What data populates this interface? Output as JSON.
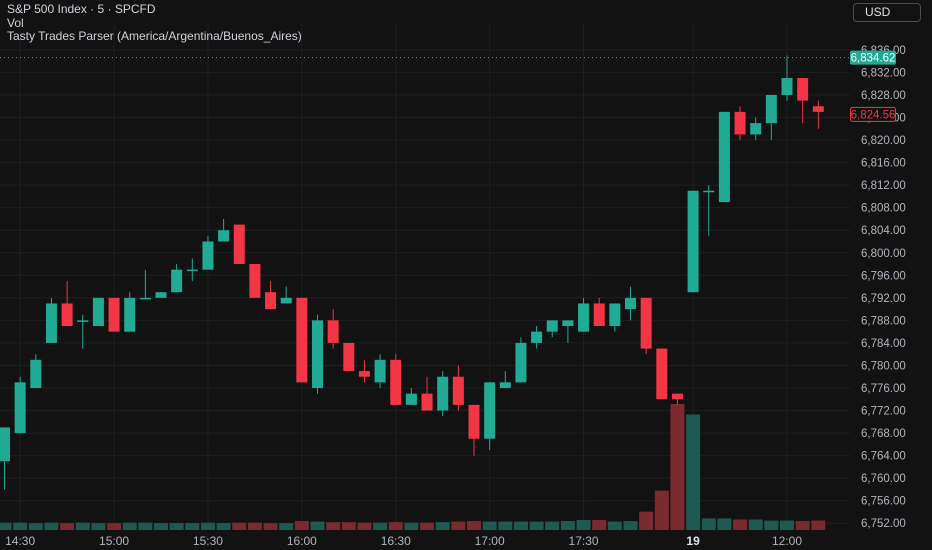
{
  "legend": {
    "symbol": "S&P 500 Index · 5 · SPCFD",
    "volume_label": "Vol",
    "indicator": "Tasty Trades Parser (America/Argentina/Buenos_Aires)"
  },
  "currency": "USD",
  "colors": {
    "background": "#121212",
    "grid": "#1e1f23",
    "up": "#22ab94",
    "down": "#f23645",
    "up_volume": "#1f5a52",
    "down_volume": "#7a2a30",
    "axis_text": "#b2b5be",
    "high_line": "#22ab94"
  },
  "chart_data": {
    "type": "candlestick",
    "interval": "5",
    "currency": "USD",
    "y_axis": {
      "ticks": [
        "6,752.00",
        "6,756.00",
        "6,760.00",
        "6,764.00",
        "6,768.00",
        "6,772.00",
        "6,776.00",
        "6,780.00",
        "6,784.00",
        "6,788.00",
        "6,792.00",
        "6,796.00",
        "6,800.00",
        "6,804.00",
        "6,808.00",
        "6,812.00",
        "6,816.00",
        "6,820.00",
        "6,824.00",
        "6,828.00",
        "6,832.00",
        "6,836.00"
      ],
      "range": [
        6750.8,
        6837.4
      ]
    },
    "x_axis": {
      "ticks": [
        {
          "label": "14:30",
          "index": 1
        },
        {
          "label": "15:00",
          "index": 7
        },
        {
          "label": "15:30",
          "index": 13
        },
        {
          "label": "16:00",
          "index": 19
        },
        {
          "label": "16:30",
          "index": 25
        },
        {
          "label": "17:00",
          "index": 31
        },
        {
          "label": "17:30",
          "index": 37
        },
        {
          "label": "19",
          "index": 44,
          "bold": true
        },
        {
          "label": "12:00",
          "index": 50
        }
      ]
    },
    "price_labels": {
      "high": "6,834.62",
      "last": "6,824.56",
      "high_value": 6834.62,
      "last_value": 6824.56
    },
    "candles": [
      {
        "o": 6763,
        "h": 6769,
        "l": 6758,
        "c": 6769
      },
      {
        "o": 6768,
        "h": 6778,
        "l": 6768,
        "c": 6777
      },
      {
        "o": 6776,
        "h": 6782,
        "l": 6776,
        "c": 6781
      },
      {
        "o": 6784,
        "h": 6792,
        "l": 6784,
        "c": 6791
      },
      {
        "o": 6791,
        "h": 6795,
        "l": 6787,
        "c": 6787
      },
      {
        "o": 6788,
        "h": 6789,
        "l": 6783,
        "c": 6788
      },
      {
        "o": 6787,
        "h": 6792,
        "l": 6787,
        "c": 6792
      },
      {
        "o": 6792,
        "h": 6792,
        "l": 6786,
        "c": 6786
      },
      {
        "o": 6786,
        "h": 6793,
        "l": 6786,
        "c": 6792
      },
      {
        "o": 6792,
        "h": 6797,
        "l": 6792,
        "c": 6792
      },
      {
        "o": 6792,
        "h": 6793,
        "l": 6792,
        "c": 6793
      },
      {
        "o": 6793,
        "h": 6798,
        "l": 6793,
        "c": 6797
      },
      {
        "o": 6797,
        "h": 6799,
        "l": 6795,
        "c": 6797
      },
      {
        "o": 6797,
        "h": 6803,
        "l": 6797,
        "c": 6802
      },
      {
        "o": 6802,
        "h": 6806,
        "l": 6802,
        "c": 6804
      },
      {
        "o": 6805,
        "h": 6805,
        "l": 6798,
        "c": 6798
      },
      {
        "o": 6798,
        "h": 6798,
        "l": 6792,
        "c": 6792
      },
      {
        "o": 6793,
        "h": 6795,
        "l": 6790,
        "c": 6790
      },
      {
        "o": 6791,
        "h": 6794,
        "l": 6791,
        "c": 6792
      },
      {
        "o": 6792,
        "h": 6792,
        "l": 6777,
        "c": 6777
      },
      {
        "o": 6776,
        "h": 6789,
        "l": 6775,
        "c": 6788
      },
      {
        "o": 6788,
        "h": 6790,
        "l": 6783,
        "c": 6784
      },
      {
        "o": 6784,
        "h": 6784,
        "l": 6779,
        "c": 6779
      },
      {
        "o": 6779,
        "h": 6781,
        "l": 6777,
        "c": 6778
      },
      {
        "o": 6777,
        "h": 6782,
        "l": 6776,
        "c": 6781
      },
      {
        "o": 6781,
        "h": 6782,
        "l": 6773,
        "c": 6773
      },
      {
        "o": 6773,
        "h": 6776,
        "l": 6773,
        "c": 6775
      },
      {
        "o": 6775,
        "h": 6778,
        "l": 6772,
        "c": 6772
      },
      {
        "o": 6772,
        "h": 6779,
        "l": 6771,
        "c": 6778
      },
      {
        "o": 6778,
        "h": 6780,
        "l": 6772,
        "c": 6773
      },
      {
        "o": 6773,
        "h": 6773,
        "l": 6764,
        "c": 6767
      },
      {
        "o": 6767,
        "h": 6777,
        "l": 6765,
        "c": 6777
      },
      {
        "o": 6776,
        "h": 6779,
        "l": 6776,
        "c": 6777
      },
      {
        "o": 6777,
        "h": 6785,
        "l": 6777,
        "c": 6784
      },
      {
        "o": 6784,
        "h": 6787,
        "l": 6783,
        "c": 6786
      },
      {
        "o": 6786,
        "h": 6788,
        "l": 6785,
        "c": 6788
      },
      {
        "o": 6787,
        "h": 6788,
        "l": 6784,
        "c": 6788
      },
      {
        "o": 6786,
        "h": 6792,
        "l": 6786,
        "c": 6791
      },
      {
        "o": 6791,
        "h": 6792,
        "l": 6787,
        "c": 6787
      },
      {
        "o": 6787,
        "h": 6791,
        "l": 6786,
        "c": 6791
      },
      {
        "o": 6790,
        "h": 6794,
        "l": 6788,
        "c": 6792
      },
      {
        "o": 6792,
        "h": 6792,
        "l": 6782,
        "c": 6783
      },
      {
        "o": 6783,
        "h": 6783,
        "l": 6774,
        "c": 6774
      },
      {
        "o": 6775,
        "h": 6775,
        "l": 6773,
        "c": 6774
      },
      {
        "o": 6793,
        "h": 6811,
        "l": 6793,
        "c": 6811
      },
      {
        "o": 6811,
        "h": 6812,
        "l": 6803,
        "c": 6811
      },
      {
        "o": 6809,
        "h": 6825,
        "l": 6809,
        "c": 6825
      },
      {
        "o": 6825,
        "h": 6826,
        "l": 6820,
        "c": 6821
      },
      {
        "o": 6821,
        "h": 6824,
        "l": 6820,
        "c": 6823
      },
      {
        "o": 6823,
        "h": 6828,
        "l": 6820,
        "c": 6828
      },
      {
        "o": 6828,
        "h": 6835,
        "l": 6827,
        "c": 6831
      },
      {
        "o": 6831,
        "h": 6831,
        "l": 6823,
        "c": 6827
      },
      {
        "o": 6826,
        "h": 6827,
        "l": 6822,
        "c": 6825
      }
    ],
    "volume": {
      "max": 24,
      "values": [
        1.4,
        1.4,
        1.3,
        1.4,
        1.3,
        1.4,
        1.3,
        1.3,
        1.4,
        1.4,
        1.3,
        1.3,
        1.3,
        1.4,
        1.3,
        1.4,
        1.4,
        1.3,
        1.3,
        1.7,
        1.6,
        1.5,
        1.5,
        1.4,
        1.4,
        1.5,
        1.4,
        1.4,
        1.5,
        1.6,
        1.7,
        1.6,
        1.6,
        1.6,
        1.6,
        1.6,
        1.7,
        1.9,
        1.9,
        1.6,
        1.7,
        3.5,
        7.5,
        24,
        22,
        2.2,
        2.2,
        2.0,
        2.0,
        1.8,
        1.8,
        1.7,
        1.8
      ]
    }
  }
}
